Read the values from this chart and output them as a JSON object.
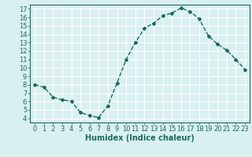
{
  "x": [
    0,
    1,
    2,
    3,
    4,
    5,
    6,
    7,
    8,
    9,
    10,
    11,
    12,
    13,
    14,
    15,
    16,
    17,
    18,
    19,
    20,
    21,
    22,
    23
  ],
  "y": [
    8.0,
    7.7,
    6.5,
    6.2,
    6.0,
    4.7,
    4.3,
    4.1,
    5.5,
    8.2,
    11.0,
    13.0,
    14.7,
    15.3,
    16.2,
    16.5,
    17.1,
    16.7,
    15.8,
    13.8,
    12.8,
    12.1,
    11.0,
    9.8
  ],
  "line_color": "#1a6b5a",
  "marker": "D",
  "marker_size": 2.0,
  "bg_color": "#d9f0f0",
  "grid_color": "#ffffff",
  "xlabel": "Humidex (Indice chaleur)",
  "xlim": [
    -0.5,
    23.5
  ],
  "ylim": [
    3.5,
    17.5
  ],
  "yticks": [
    4,
    5,
    6,
    7,
    8,
    9,
    10,
    11,
    12,
    13,
    14,
    15,
    16,
    17
  ],
  "xticks": [
    0,
    1,
    2,
    3,
    4,
    5,
    6,
    7,
    8,
    9,
    10,
    11,
    12,
    13,
    14,
    15,
    16,
    17,
    18,
    19,
    20,
    21,
    22,
    23
  ],
  "tick_color": "#1a6b5a",
  "label_color": "#1a6b5a",
  "font_size": 6,
  "xlabel_fontsize": 7,
  "linewidth": 1.0
}
